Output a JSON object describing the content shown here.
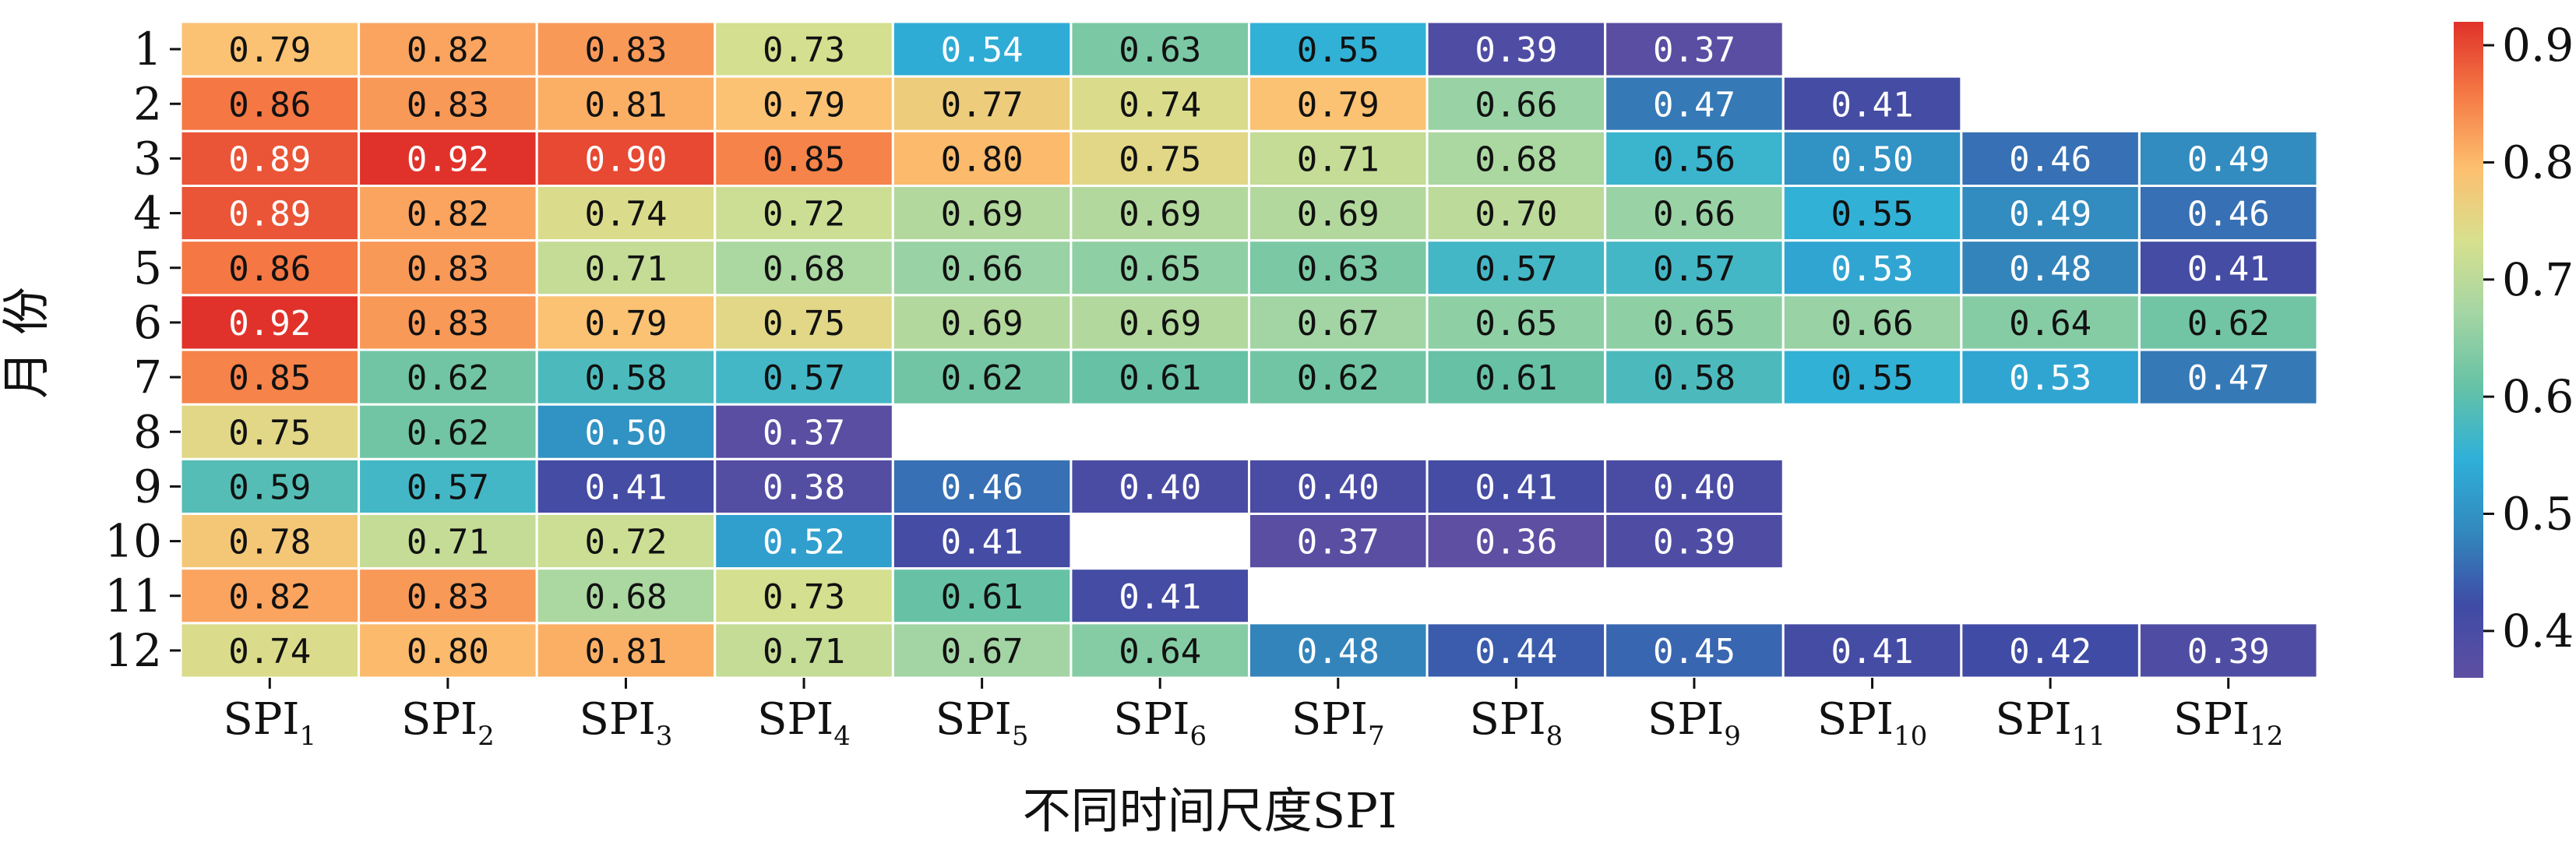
{
  "chart_data": {
    "type": "heatmap",
    "title": "",
    "xlabel": "不同时间尺度SPI",
    "ylabel": "月 份",
    "x_categories": [
      {
        "base": "SPI",
        "sub": "1"
      },
      {
        "base": "SPI",
        "sub": "2"
      },
      {
        "base": "SPI",
        "sub": "3"
      },
      {
        "base": "SPI",
        "sub": "4"
      },
      {
        "base": "SPI",
        "sub": "5"
      },
      {
        "base": "SPI",
        "sub": "6"
      },
      {
        "base": "SPI",
        "sub": "7"
      },
      {
        "base": "SPI",
        "sub": "8"
      },
      {
        "base": "SPI",
        "sub": "9"
      },
      {
        "base": "SPI",
        "sub": "10"
      },
      {
        "base": "SPI",
        "sub": "11"
      },
      {
        "base": "SPI",
        "sub": "12"
      }
    ],
    "y_categories": [
      "1",
      "2",
      "3",
      "4",
      "5",
      "6",
      "7",
      "8",
      "9",
      "10",
      "11",
      "12"
    ],
    "values": [
      [
        0.79,
        0.82,
        0.83,
        0.73,
        0.54,
        0.63,
        0.55,
        0.39,
        0.37,
        null,
        null,
        null
      ],
      [
        0.86,
        0.83,
        0.81,
        0.79,
        0.77,
        0.74,
        0.79,
        0.66,
        0.47,
        0.41,
        null,
        null
      ],
      [
        0.89,
        0.92,
        0.9,
        0.85,
        0.8,
        0.75,
        0.71,
        0.68,
        0.56,
        0.5,
        0.46,
        0.49
      ],
      [
        0.89,
        0.82,
        0.74,
        0.72,
        0.69,
        0.69,
        0.69,
        0.7,
        0.66,
        0.55,
        0.49,
        0.46
      ],
      [
        0.86,
        0.83,
        0.71,
        0.68,
        0.66,
        0.65,
        0.63,
        0.57,
        0.57,
        0.53,
        0.48,
        0.41
      ],
      [
        0.92,
        0.83,
        0.79,
        0.75,
        0.69,
        0.69,
        0.67,
        0.65,
        0.65,
        0.66,
        0.64,
        0.62
      ],
      [
        0.85,
        0.62,
        0.58,
        0.57,
        0.62,
        0.61,
        0.62,
        0.61,
        0.58,
        0.55,
        0.53,
        0.47
      ],
      [
        0.75,
        0.62,
        0.5,
        0.37,
        null,
        null,
        null,
        null,
        null,
        null,
        null,
        null
      ],
      [
        0.59,
        0.57,
        0.41,
        0.38,
        0.46,
        0.4,
        0.4,
        0.41,
        0.4,
        null,
        null,
        null
      ],
      [
        0.78,
        0.71,
        0.72,
        0.52,
        0.41,
        null,
        0.37,
        0.36,
        0.39,
        null,
        null,
        null
      ],
      [
        0.82,
        0.83,
        0.68,
        0.73,
        0.61,
        0.41,
        null,
        null,
        null,
        null,
        null,
        null
      ],
      [
        0.74,
        0.8,
        0.81,
        0.71,
        0.67,
        0.64,
        0.48,
        0.44,
        0.45,
        0.41,
        0.42,
        0.39
      ]
    ],
    "value_format": "2 decimals",
    "colormap": "Spectral_r",
    "vmin": 0.36,
    "vmax": 0.92,
    "colorbar_ticks": [
      0.4,
      0.5,
      0.6,
      0.7,
      0.8,
      0.9
    ],
    "grid": false,
    "legend": "colorbar right"
  },
  "colors": {
    "stops": [
      "#5e4fa2",
      "#3288bd",
      "#2eb4d8",
      "#66c2a5",
      "#abdda4",
      "#e6f598",
      "#fee08b",
      "#fdae61",
      "#f46d43",
      "#d53e4f"
    ],
    "spectral_stops": [
      "#5e4fa2",
      "#3f4ba5",
      "#3288bd",
      "#2fb0d9",
      "#66c2a5",
      "#a4d5a4",
      "#d7e08e",
      "#fdbf6f",
      "#f57a45",
      "#e0322a"
    ],
    "cell_border": "#ffffff",
    "light_text": "#ffffff",
    "dark_text": "#111111"
  }
}
